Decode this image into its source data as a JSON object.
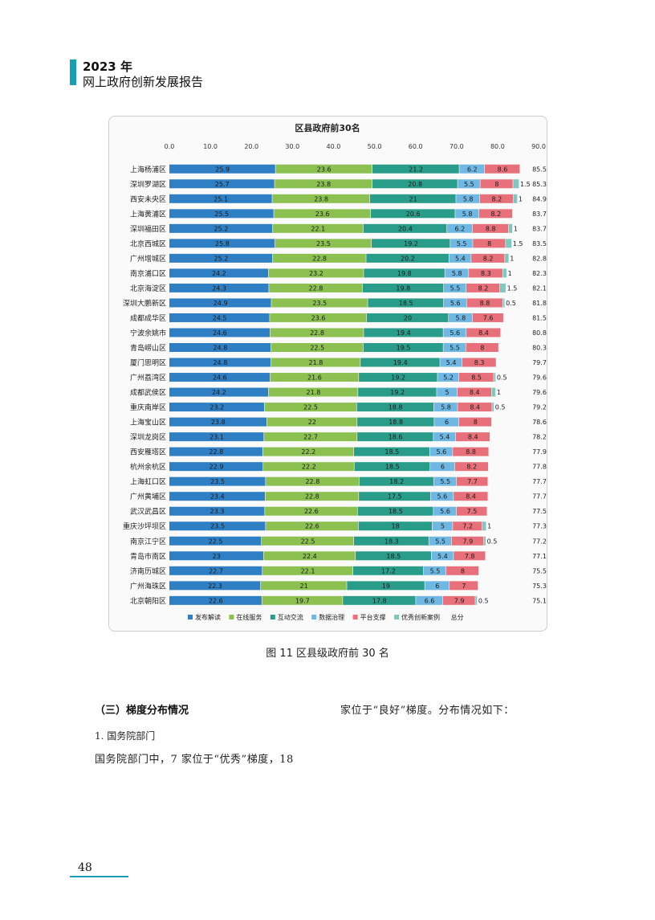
{
  "header": {
    "year": "2023 年",
    "title": "网上政府创新发展报告"
  },
  "figure": {
    "caption": "图 11    区县级政府前 30 名"
  },
  "section": {
    "heading": "（三）梯度分布情况",
    "subheading": "1. 国务院部门",
    "body": "国务院部门中，7 家位于“优秀”梯度，18",
    "right_text": "家位于“良好”梯度。分布情况如下："
  },
  "page_number": "48",
  "chart_data": {
    "type": "bar",
    "orientation": "horizontal",
    "stacked": true,
    "title": "区县政府前30名",
    "xlim": [
      0,
      90
    ],
    "xticks": [
      "0.0",
      "10.0",
      "20.0",
      "30.0",
      "40.0",
      "50.0",
      "60.0",
      "70.0",
      "80.0",
      "90.0"
    ],
    "legend_position": "bottom",
    "total_label": "总分",
    "categories": [
      "上海杨浦区",
      "深圳罗湖区",
      "西安未央区",
      "上海黄浦区",
      "深圳福田区",
      "北京西城区",
      "广州增城区",
      "南京浦口区",
      "北京海淀区",
      "深圳大鹏新区",
      "成都成华区",
      "宁波余姚市",
      "青岛崂山区",
      "厦门思明区",
      "广州荔湾区",
      "成都武侯区",
      "重庆南岸区",
      "上海宝山区",
      "深圳龙岗区",
      "西安雁塔区",
      "杭州余杭区",
      "上海虹口区",
      "广州黄埔区",
      "武汉武昌区",
      "重庆沙坪坝区",
      "南京江宁区",
      "青岛市南区",
      "济南历城区",
      "广州海珠区",
      "北京朝阳区"
    ],
    "series": [
      {
        "name": "发布解读",
        "color": "#2f7fc4",
        "values": [
          25.9,
          25.7,
          25.1,
          25.5,
          25.2,
          25.8,
          25.2,
          24.2,
          24.3,
          24.9,
          24.5,
          24.6,
          24.8,
          24.8,
          24.6,
          24.2,
          23.2,
          23.8,
          23.1,
          22.8,
          22.9,
          23.5,
          23.4,
          23.3,
          23.5,
          22.5,
          23.0,
          22.7,
          22.3,
          22.6
        ]
      },
      {
        "name": "在线服务",
        "color": "#8cc152",
        "values": [
          23.6,
          23.8,
          23.8,
          23.6,
          22.1,
          23.5,
          22.8,
          23.2,
          22.8,
          23.5,
          23.6,
          22.8,
          22.5,
          21.8,
          21.6,
          21.8,
          22.5,
          22.0,
          22.7,
          22.2,
          22.2,
          22.8,
          22.8,
          22.6,
          22.6,
          22.5,
          22.4,
          22.1,
          21.0,
          19.7
        ]
      },
      {
        "name": "互动交流",
        "color": "#2a9d8a",
        "values": [
          21.2,
          20.8,
          21.0,
          20.6,
          20.4,
          19.2,
          20.2,
          19.8,
          19.8,
          18.5,
          20.0,
          19.4,
          19.5,
          19.4,
          19.2,
          19.2,
          18.8,
          18.8,
          18.6,
          18.5,
          18.5,
          18.2,
          17.5,
          18.5,
          18.0,
          18.3,
          18.5,
          17.2,
          19.0,
          17.8
        ]
      },
      {
        "name": "数据治理",
        "color": "#6fb8e3",
        "values": [
          6.2,
          5.5,
          5.8,
          5.8,
          6.2,
          5.5,
          5.4,
          5.8,
          5.5,
          5.6,
          5.8,
          5.6,
          5.5,
          5.4,
          5.2,
          5.0,
          5.8,
          6.0,
          5.4,
          5.6,
          6.0,
          5.5,
          5.6,
          5.6,
          5.0,
          5.5,
          5.4,
          5.5,
          6.0,
          6.6
        ]
      },
      {
        "name": "平台支撑",
        "color": "#e8707a",
        "values": [
          8.6,
          8.0,
          8.2,
          8.2,
          8.8,
          8.0,
          8.2,
          8.3,
          8.2,
          8.8,
          7.6,
          8.4,
          8.0,
          8.3,
          8.5,
          8.4,
          8.4,
          8.0,
          8.4,
          8.8,
          8.2,
          7.7,
          8.4,
          7.5,
          7.2,
          7.9,
          7.8,
          8.0,
          7.0,
          7.9
        ]
      },
      {
        "name": "优秀创新案例",
        "color": "#7ec8c0",
        "values": [
          0,
          1.5,
          1,
          0,
          1,
          1.5,
          1,
          1,
          1.5,
          0.5,
          0,
          0,
          0,
          0,
          0.5,
          1,
          0.5,
          0,
          0,
          0,
          0,
          0,
          0,
          0,
          1,
          0.5,
          0,
          0,
          0,
          0.5
        ]
      }
    ],
    "totals": [
      85.5,
      85.3,
      84.9,
      83.7,
      83.7,
      83.5,
      82.8,
      82.3,
      82.1,
      81.8,
      81.5,
      80.8,
      80.3,
      79.7,
      79.6,
      79.6,
      79.2,
      78.6,
      78.2,
      77.9,
      77.8,
      77.7,
      77.7,
      77.5,
      77.3,
      77.2,
      77.1,
      75.5,
      75.3,
      75.1
    ]
  }
}
